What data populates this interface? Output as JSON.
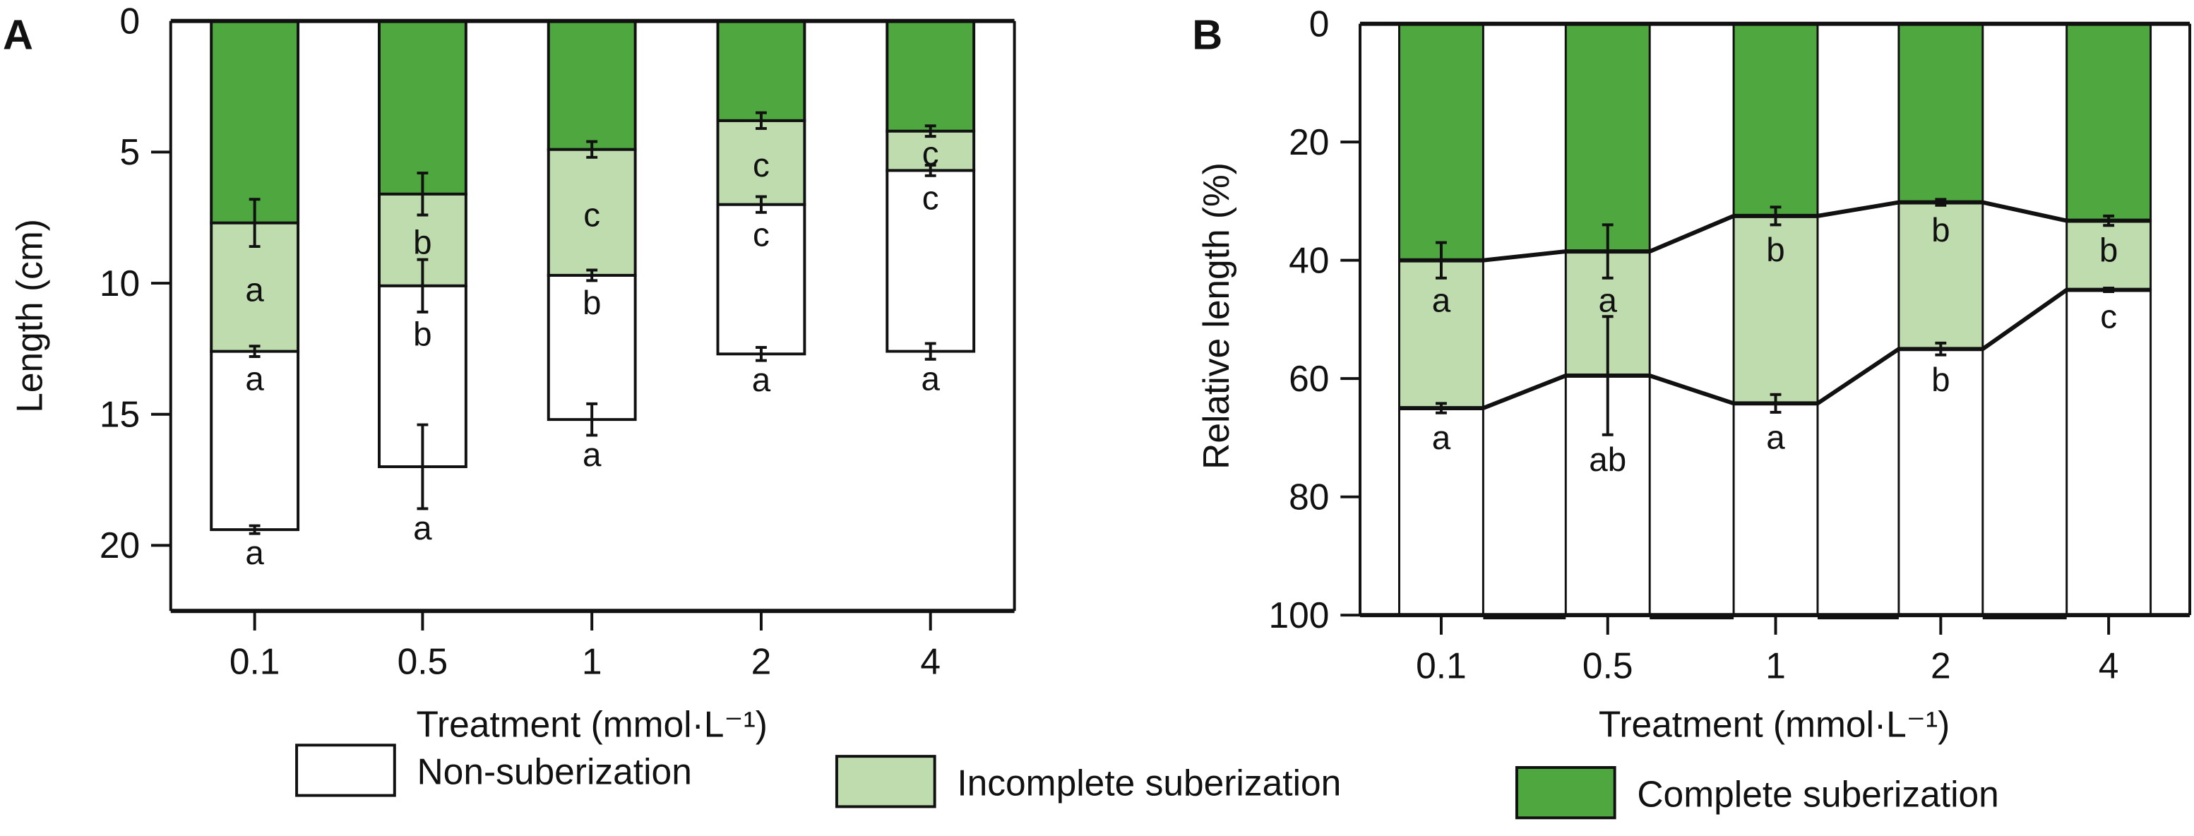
{
  "colors": {
    "non": "#ffffff",
    "incomplete": "#bfdcae",
    "complete": "#4fa83f",
    "stroke": "#111111"
  },
  "legend": [
    {
      "key": "non",
      "label": "Non-suberization"
    },
    {
      "key": "incomplete",
      "label": "Incomplete suberization"
    },
    {
      "key": "complete",
      "label": "Complete suberization"
    }
  ],
  "chart_data": [
    {
      "panel": "A",
      "type": "bar",
      "stacked": true,
      "orientation": "inverted-y",
      "xlabel": "Treatment (mmol·L⁻¹)",
      "ylabel": "Length (cm)",
      "ylim": [
        0,
        22.5
      ],
      "yticks": [
        0,
        5,
        10,
        15,
        20
      ],
      "categories": [
        "0.1",
        "0.5",
        "1",
        "2",
        "4"
      ],
      "boundaries_cm": {
        "complete_end": [
          7.7,
          6.6,
          4.9,
          3.8,
          4.2
        ],
        "incomplete_end": [
          12.6,
          10.1,
          9.7,
          7.0,
          5.7
        ],
        "total": [
          19.4,
          17.0,
          15.2,
          12.7,
          12.6
        ]
      },
      "errors": {
        "complete_end": [
          0.9,
          0.8,
          0.3,
          0.3,
          0.2
        ],
        "incomplete_end": [
          0.2,
          1.0,
          0.2,
          0.3,
          0.2
        ],
        "total": [
          0.15,
          1.6,
          0.6,
          0.25,
          0.3
        ]
      },
      "letters": {
        "incomplete": [
          "a",
          "b",
          "c",
          "c",
          "c"
        ],
        "non": [
          "a",
          "b",
          "b",
          "c",
          "c"
        ],
        "total": [
          "a",
          "a",
          "a",
          "a",
          "a"
        ]
      },
      "series": [
        {
          "name": "Complete suberization",
          "values": [
            7.7,
            6.6,
            4.9,
            3.8,
            4.2
          ]
        },
        {
          "name": "Incomplete suberization",
          "values": [
            4.9,
            3.5,
            4.8,
            3.2,
            1.5
          ]
        },
        {
          "name": "Non-suberization",
          "values": [
            6.8,
            6.9,
            5.5,
            5.7,
            6.9
          ]
        }
      ]
    },
    {
      "panel": "B",
      "type": "bar",
      "stacked": true,
      "orientation": "inverted-y",
      "xlabel": "Treatment (mmol·L⁻¹)",
      "ylabel": "Relative length (%)",
      "ylim": [
        0,
        100
      ],
      "yticks": [
        0,
        20,
        40,
        60,
        80,
        100
      ],
      "categories": [
        "0.1",
        "0.5",
        "1",
        "2",
        "4"
      ],
      "boundaries_pct": {
        "complete_end": [
          40.0,
          38.5,
          32.5,
          30.2,
          33.3
        ],
        "incomplete_end": [
          65.0,
          59.5,
          64.2,
          55.0,
          45.0
        ]
      },
      "errors": {
        "complete_end": [
          3.0,
          4.5,
          1.5,
          0.5,
          0.8
        ],
        "incomplete_end": [
          0.8,
          10.0,
          1.5,
          1.0,
          0.3
        ]
      },
      "letters": {
        "complete": [
          "a",
          "a",
          "b",
          "b",
          "b"
        ],
        "incomplete": [
          "a",
          "ab",
          "a",
          "b",
          "c"
        ]
      },
      "series": [
        {
          "name": "Complete suberization",
          "values": [
            40.0,
            38.5,
            32.5,
            30.2,
            33.3
          ]
        },
        {
          "name": "Incomplete suberization",
          "values": [
            25.0,
            21.0,
            31.7,
            24.8,
            11.7
          ]
        },
        {
          "name": "Non-suberization",
          "values": [
            35.0,
            40.5,
            35.8,
            45.0,
            55.0
          ]
        }
      ]
    }
  ]
}
